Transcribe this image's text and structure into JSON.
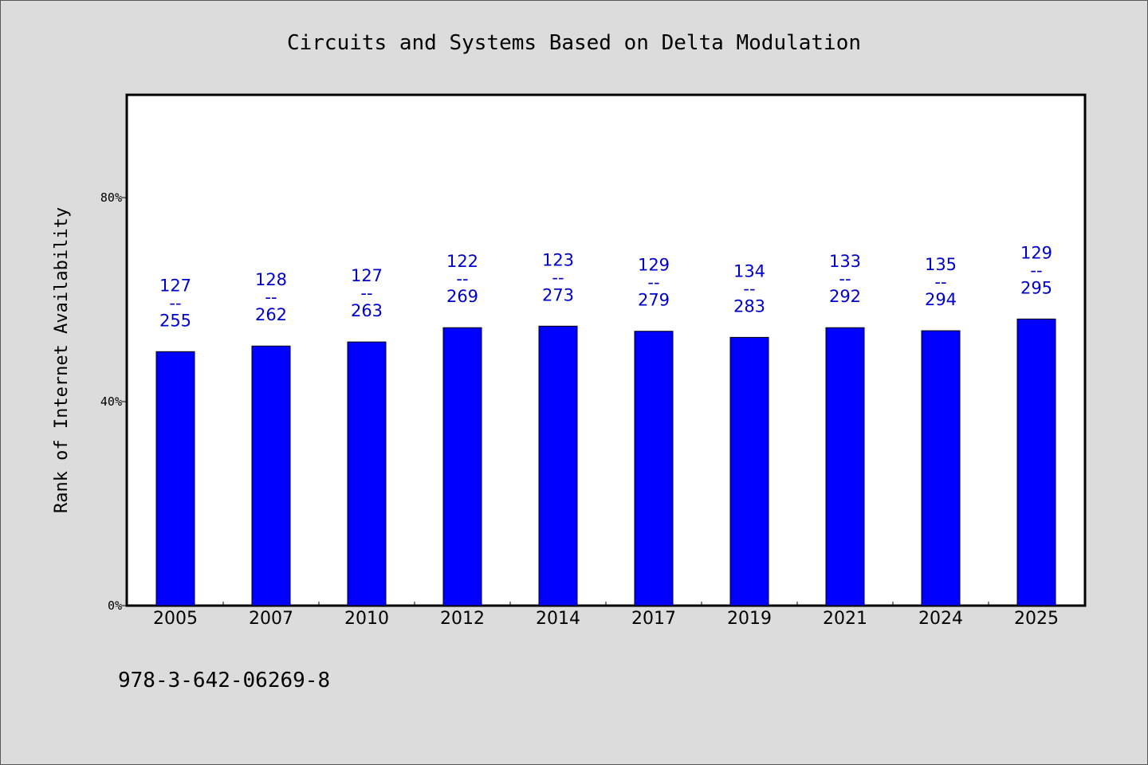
{
  "chart_data": {
    "type": "bar",
    "title": "Circuits and Systems Based on Delta Modulation",
    "ylabel": "Rank of Internet Availability",
    "xlabel": "",
    "ylim": [
      0,
      100
    ],
    "yticks": [
      {
        "value": 0,
        "label": "0%"
      },
      {
        "value": 40,
        "label": "40%"
      },
      {
        "value": 80,
        "label": "80%"
      }
    ],
    "categories": [
      "2005",
      "2007",
      "2010",
      "2012",
      "2014",
      "2017",
      "2019",
      "2021",
      "2024",
      "2025"
    ],
    "values": [
      49.8,
      50.9,
      51.7,
      54.5,
      54.8,
      53.8,
      52.6,
      54.5,
      53.9,
      56.2
    ],
    "labels": [
      {
        "rank": "127",
        "sep": "--",
        "total": "255"
      },
      {
        "rank": "128",
        "sep": "--",
        "total": "262"
      },
      {
        "rank": "127",
        "sep": "--",
        "total": "263"
      },
      {
        "rank": "122",
        "sep": "--",
        "total": "269"
      },
      {
        "rank": "123",
        "sep": "--",
        "total": "273"
      },
      {
        "rank": "129",
        "sep": "--",
        "total": "279"
      },
      {
        "rank": "134",
        "sep": "--",
        "total": "283"
      },
      {
        "rank": "133",
        "sep": "--",
        "total": "292"
      },
      {
        "rank": "135",
        "sep": "--",
        "total": "294"
      },
      {
        "rank": "129",
        "sep": "--",
        "total": "295"
      }
    ],
    "bar_color": "#0000ff",
    "label_color": "#0000cc",
    "grid": false,
    "legend": "none"
  },
  "footer_text": "978-3-642-06269-8"
}
